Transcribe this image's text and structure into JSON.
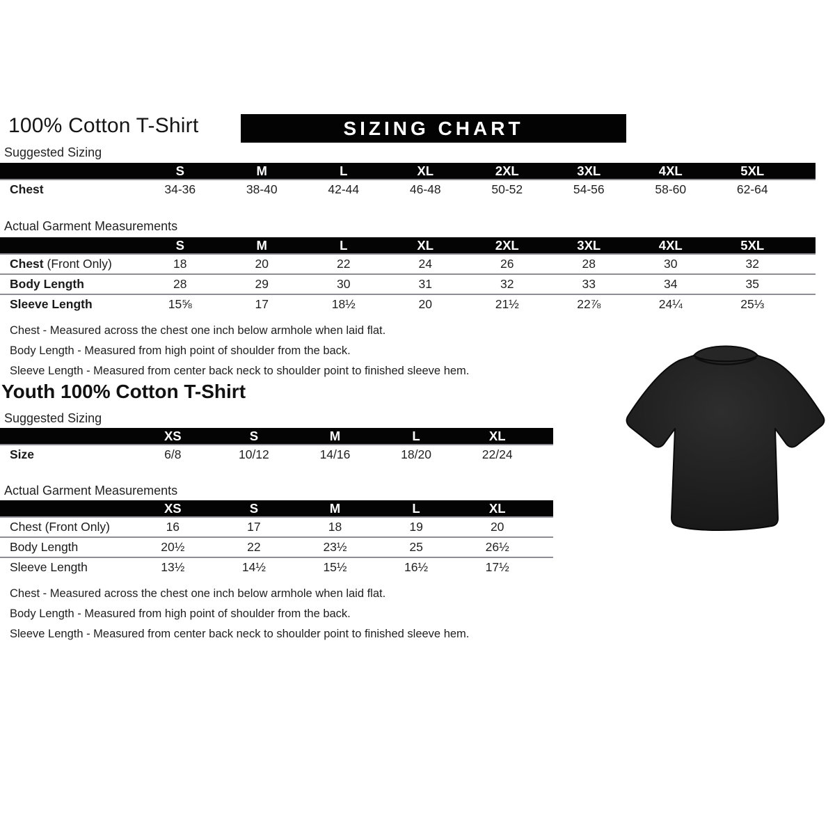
{
  "page": {
    "background": "#ffffff"
  },
  "adult": {
    "title": "100% Cotton T-Shirt",
    "banner": "SIZING CHART",
    "suggested": {
      "label": "Suggested Sizing",
      "columns": [
        "S",
        "M",
        "L",
        "XL",
        "2XL",
        "3XL",
        "4XL",
        "5XL"
      ],
      "rows": [
        {
          "label": "Chest",
          "suffix": "",
          "values": [
            "34-36",
            "38-40",
            "42-44",
            "46-48",
            "50-52",
            "54-56",
            "58-60",
            "62-64"
          ]
        }
      ]
    },
    "actual": {
      "label": "Actual Garment Measurements",
      "columns": [
        "S",
        "M",
        "L",
        "XL",
        "2XL",
        "3XL",
        "4XL",
        "5XL"
      ],
      "rows": [
        {
          "label": "Chest",
          "suffix": " (Front Only)",
          "values": [
            "18",
            "20",
            "22",
            "24",
            "26",
            "28",
            "30",
            "32"
          ]
        },
        {
          "label": "Body Length",
          "suffix": "",
          "values": [
            "28",
            "29",
            "30",
            "31",
            "32",
            "33",
            "34",
            "35"
          ]
        },
        {
          "label": "Sleeve Length",
          "suffix": "",
          "values": [
            "15⅝",
            "17",
            "18½",
            "20",
            "21½",
            "22⅞",
            "24¼",
            "25⅓"
          ]
        }
      ]
    },
    "notes": [
      "Chest - Measured across the chest one inch below armhole when laid flat.",
      "Body Length - Measured from high point of shoulder from the back.",
      "Sleeve Length - Measured from center back neck to shoulder point to finished sleeve hem."
    ]
  },
  "youth": {
    "title": "Youth 100% Cotton T-Shirt",
    "suggested": {
      "label": "Suggested Sizing",
      "columns": [
        "XS",
        "S",
        "M",
        "L",
        "XL"
      ],
      "rows": [
        {
          "label": "Size",
          "suffix": "",
          "values": [
            "6/8",
            "10/12",
            "14/16",
            "18/20",
            "22/24"
          ]
        }
      ]
    },
    "actual": {
      "label": "Actual Garment Measurements",
      "columns": [
        "XS",
        "S",
        "M",
        "L",
        "XL"
      ],
      "rows": [
        {
          "label": "Chest",
          "suffix": " (Front Only)",
          "values": [
            "16",
            "17",
            "18",
            "19",
            "20"
          ]
        },
        {
          "label": "Body Length",
          "suffix": "",
          "values": [
            "20½",
            "22",
            "23½",
            "25",
            "26½"
          ]
        },
        {
          "label": "Sleeve Length",
          "suffix": "",
          "values": [
            "13½",
            "14½",
            "15½",
            "16½",
            "17½"
          ]
        }
      ]
    },
    "notes": [
      "Chest - Measured across the chest one inch below armhole when laid flat.",
      "Body Length - Measured from high point of shoulder from the back.",
      "Sleeve Length - Measured from center back neck to shoulder point to finished sleeve hem."
    ]
  },
  "tshirt": {
    "alt": "black short-sleeve crew-neck t-shirt",
    "color": "#1b1b1b"
  }
}
